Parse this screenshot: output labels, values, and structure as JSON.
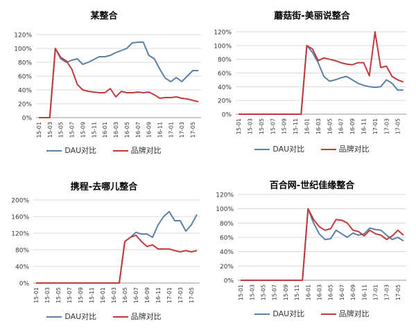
{
  "chart_data": [
    {
      "type": "line",
      "title": "某整合",
      "yticks": [
        "0%",
        "20%",
        "40%",
        "60%",
        "80%",
        "100%",
        "120%"
      ],
      "ylim": [
        0,
        120
      ],
      "x": [
        "15-01",
        "15-02",
        "15-03",
        "15-04",
        "15-05",
        "15-06",
        "15-07",
        "15-08",
        "15-09",
        "15-10",
        "15-11",
        "15-12",
        "16-01",
        "16-02",
        "16-03",
        "16-04",
        "16-05",
        "16-06",
        "16-07",
        "16-08",
        "16-09",
        "16-10",
        "16-11",
        "16-12",
        "17-01",
        "17-02",
        "17-03",
        "17-04",
        "17-05",
        "17-06"
      ],
      "xticks": [
        "15-01",
        "15-03",
        "15-05",
        "15-07",
        "15-09",
        "15-11",
        "16-01",
        "16-03",
        "16-05",
        "16-07",
        "16-09",
        "16-11",
        "17-01",
        "17-03",
        "17-05"
      ],
      "series": [
        {
          "name": "DAU对比",
          "color": "#5b7fa6",
          "values": [
            0,
            0,
            0,
            100,
            85,
            80,
            83,
            85,
            77,
            80,
            84,
            88,
            88,
            90,
            94,
            97,
            100,
            108,
            109,
            109,
            90,
            85,
            70,
            57,
            52,
            58,
            52,
            60,
            68,
            68
          ]
        },
        {
          "name": "品牌对比",
          "color": "#c0393b",
          "values": [
            0,
            0,
            0,
            100,
            87,
            82,
            70,
            48,
            40,
            38,
            37,
            36,
            36,
            42,
            30,
            38,
            36,
            36,
            37,
            36,
            37,
            33,
            28,
            29,
            29,
            30,
            28,
            27,
            25,
            23
          ]
        }
      ]
    },
    {
      "type": "line",
      "title": "蘑菇街-美丽说整合",
      "yticks": [
        "0%",
        "20%",
        "40%",
        "60%",
        "80%",
        "100%",
        "120%"
      ],
      "ylim": [
        0,
        120
      ],
      "x": [
        "15-01",
        "15-02",
        "15-03",
        "15-04",
        "15-05",
        "15-06",
        "15-07",
        "15-08",
        "15-09",
        "15-10",
        "15-11",
        "15-12",
        "16-01",
        "16-02",
        "16-03",
        "16-04",
        "16-05",
        "16-06",
        "16-07",
        "16-08",
        "16-09",
        "16-10",
        "16-11",
        "16-12",
        "17-01",
        "17-02",
        "17-03",
        "17-04",
        "17-05",
        "17-06"
      ],
      "xticks": [
        "15-01",
        "15-03",
        "15-05",
        "15-07",
        "15-09",
        "15-11",
        "16-01",
        "16-03",
        "16-05",
        "16-07",
        "16-09",
        "16-11",
        "17-01",
        "17-03",
        "17-05"
      ],
      "series": [
        {
          "name": "DAU对比",
          "color": "#5b7fa6",
          "values": [
            0,
            0,
            0,
            0,
            0,
            0,
            0,
            0,
            0,
            0,
            0,
            0,
            100,
            90,
            75,
            55,
            48,
            50,
            53,
            55,
            50,
            45,
            42,
            40,
            39,
            40,
            50,
            45,
            35,
            35
          ]
        },
        {
          "name": "品牌对比",
          "color": "#c0393b",
          "values": [
            0,
            0,
            0,
            0,
            0,
            0,
            0,
            0,
            0,
            0,
            0,
            0,
            100,
            95,
            78,
            82,
            80,
            78,
            75,
            73,
            72,
            75,
            75,
            56,
            120,
            68,
            70,
            55,
            50,
            47
          ]
        }
      ]
    },
    {
      "type": "line",
      "title": "携程-去哪儿整合",
      "yticks": [
        "0%",
        "40%",
        "80%",
        "120%",
        "160%",
        "200%"
      ],
      "ylim": [
        0,
        200
      ],
      "x": [
        "15-01",
        "15-02",
        "15-03",
        "15-04",
        "15-05",
        "15-06",
        "15-07",
        "15-08",
        "15-09",
        "15-10",
        "15-11",
        "15-12",
        "16-01",
        "16-02",
        "16-03",
        "16-04",
        "16-05",
        "16-06",
        "16-07",
        "16-08",
        "16-09",
        "16-10",
        "16-11",
        "16-12",
        "17-01",
        "17-02",
        "17-03",
        "17-04",
        "17-05",
        "17-06"
      ],
      "xticks": [
        "15-01",
        "15-03",
        "15-05",
        "15-07",
        "15-09",
        "15-11",
        "16-01",
        "16-03",
        "16-05",
        "16-07",
        "16-09",
        "16-11",
        "17-01",
        "17-03",
        "17-05"
      ],
      "series": [
        {
          "name": "DAU对比",
          "color": "#5b7fa6",
          "values": [
            0,
            0,
            0,
            0,
            0,
            0,
            0,
            0,
            0,
            0,
            0,
            0,
            0,
            0,
            0,
            0,
            100,
            110,
            122,
            118,
            118,
            110,
            140,
            160,
            172,
            150,
            150,
            125,
            140,
            165
          ]
        },
        {
          "name": "品牌对比",
          "color": "#c0393b",
          "values": [
            0,
            0,
            0,
            0,
            0,
            0,
            0,
            0,
            0,
            0,
            0,
            0,
            0,
            0,
            0,
            0,
            100,
            110,
            115,
            100,
            88,
            92,
            82,
            82,
            82,
            78,
            75,
            78,
            75,
            78
          ]
        }
      ]
    },
    {
      "type": "line",
      "title": "百合网-世纪佳缘整合",
      "yticks": [
        "0%",
        "20%",
        "40%",
        "60%",
        "80%",
        "100%",
        "120%"
      ],
      "ylim": [
        0,
        120
      ],
      "x": [
        "15-01",
        "15-02",
        "15-03",
        "15-04",
        "15-05",
        "15-06",
        "15-07",
        "15-08",
        "15-09",
        "15-10",
        "15-11",
        "15-12",
        "16-01",
        "16-02",
        "16-03",
        "16-04",
        "16-05",
        "16-06",
        "16-07",
        "16-08",
        "16-09",
        "16-10",
        "16-11",
        "16-12",
        "17-01",
        "17-02",
        "17-03",
        "17-04",
        "17-05",
        "17-06"
      ],
      "xticks": [
        "15-01",
        "15-03",
        "15-05",
        "15-07",
        "15-09",
        "15-11",
        "16-01",
        "16-03",
        "16-05",
        "16-07",
        "16-09",
        "16-11",
        "17-01",
        "17-03",
        "17-05"
      ],
      "series": [
        {
          "name": "DAU对比",
          "color": "#5b7fa6",
          "values": [
            0,
            0,
            0,
            0,
            0,
            0,
            0,
            0,
            0,
            0,
            0,
            0,
            100,
            80,
            65,
            57,
            58,
            70,
            65,
            60,
            66,
            63,
            65,
            73,
            71,
            70,
            63,
            57,
            60,
            55
          ]
        },
        {
          "name": "品牌对比",
          "color": "#c0393b",
          "values": [
            0,
            0,
            0,
            0,
            0,
            0,
            0,
            0,
            0,
            0,
            0,
            0,
            100,
            85,
            75,
            70,
            72,
            85,
            84,
            80,
            70,
            68,
            62,
            70,
            65,
            63,
            57,
            62,
            70,
            63
          ]
        }
      ]
    }
  ]
}
